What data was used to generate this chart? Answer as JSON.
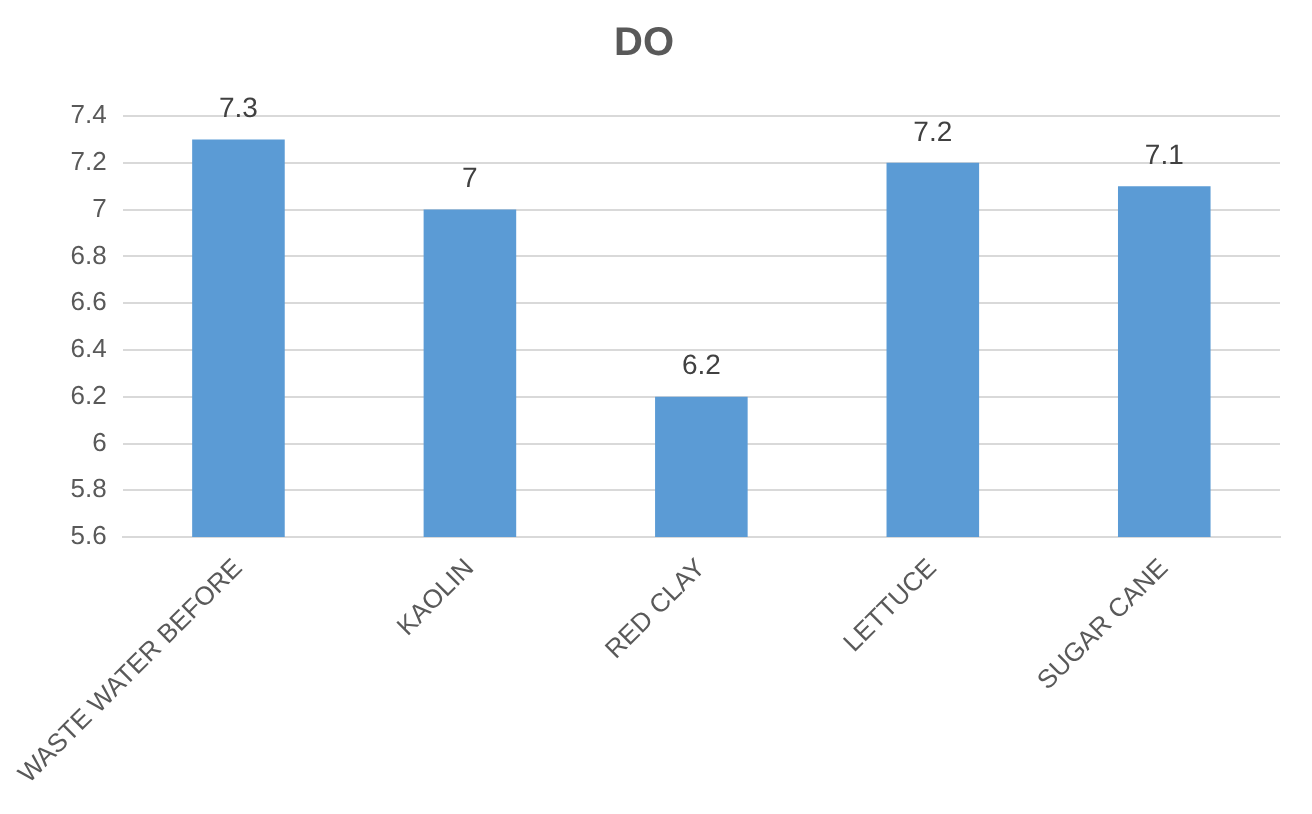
{
  "chart_data": {
    "type": "bar",
    "title": "DO",
    "categories": [
      "WASTE WATER BEFORE",
      "KAOLIN",
      "RED CLAY",
      "LETTUCE",
      "SUGAR CANE"
    ],
    "values": [
      7.3,
      7,
      6.2,
      7.2,
      7.1
    ],
    "color": "#5b9bd5",
    "ylim": [
      5.6,
      7.4
    ],
    "yticks": [
      5.6,
      5.8,
      6,
      6.2,
      6.4,
      6.6,
      6.8,
      7,
      7.2,
      7.4
    ],
    "grid": "y",
    "data_labels": true,
    "legend": false
  }
}
